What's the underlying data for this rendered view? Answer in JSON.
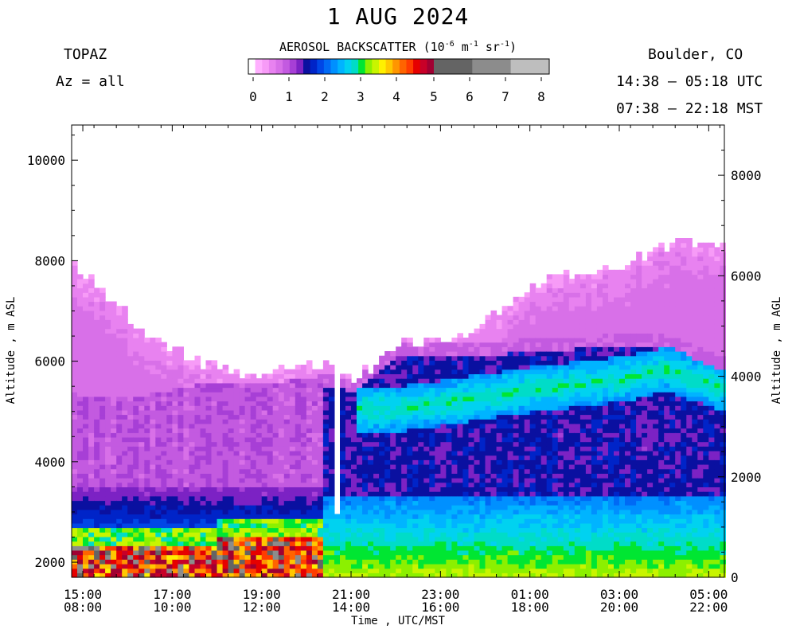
{
  "header": {
    "title": "1 AUG 2024",
    "instrument": "TOPAZ",
    "azimuth": "Az = all",
    "location": "Boulder, CO",
    "utc_range": "14:38 – 05:18 UTC",
    "mst_range": "07:38 – 22:18 MST"
  },
  "colorbar": {
    "title_prefix": "AEROSOL BACKSCATTER (10",
    "title_exp1": "-6",
    "title_mid": " m",
    "title_exp2": "-1",
    "title_mid2": " sr",
    "title_exp3": "-1",
    "title_suffix": ")",
    "tick_labels": [
      "0",
      "1",
      "2",
      "3",
      "4",
      "5",
      "6",
      "7",
      "8"
    ],
    "colors": [
      "#ffffff",
      "#ffb0ff",
      "#f79bf7",
      "#e882f0",
      "#d870e8",
      "#c35ae0",
      "#a73fd6",
      "#7c22c4",
      "#0a10a0",
      "#0024c8",
      "#0046e6",
      "#006af5",
      "#0090ff",
      "#00b4ff",
      "#00d2f0",
      "#00dcc8",
      "#00e632",
      "#8cf000",
      "#c8f500",
      "#fff000",
      "#ffc800",
      "#ff9600",
      "#ff6400",
      "#ff3c00",
      "#e60000",
      "#c80028",
      "#a00032",
      "#646464",
      "#8c8c8c",
      "#bebebe"
    ]
  },
  "chart_data": {
    "type": "heatmap",
    "title": "1 AUG 2024",
    "xlabel": "Time , UTC/MST",
    "ylabel_left": "Altitude , m ASL",
    "ylabel_right": "Altitude , m AGL",
    "x_ticks_utc": [
      "15:00",
      "17:00",
      "19:00",
      "21:00",
      "23:00",
      "01:00",
      "03:00",
      "05:00"
    ],
    "x_ticks_mst": [
      "08:00",
      "10:00",
      "12:00",
      "14:00",
      "16:00",
      "18:00",
      "20:00",
      "22:00"
    ],
    "x_tick_hours_from_1500utc": [
      0,
      2,
      4,
      6,
      8,
      10,
      12,
      14
    ],
    "xlim_hours_from_1500utc": [
      -0.25,
      14.35
    ],
    "ylim_asl_m": [
      1700,
      10700
    ],
    "yticks_asl": [
      2000,
      4000,
      6000,
      8000,
      10000
    ],
    "ylim_agl_m": [
      0,
      9000
    ],
    "yticks_agl": [
      0,
      2000,
      4000,
      6000,
      8000
    ],
    "value_units": "1e-6 m-1 sr-1",
    "value_range": [
      0,
      8
    ],
    "ground_height_m_asl": 1650,
    "profile_times_h": [
      -0.25,
      1.0,
      2.5,
      4.0,
      5.5,
      6.0,
      7.0,
      8.5,
      10.0,
      12.0,
      13.0,
      14.35
    ],
    "top_of_data_m_asl": [
      7850,
      6800,
      5900,
      5700,
      5900,
      5600,
      6300,
      6500,
      7500,
      7900,
      8300,
      8300
    ],
    "aerosol_layer_top_m_asl": [
      5300,
      5200,
      5500,
      5500,
      5700,
      5600,
      6300,
      6300,
      6400,
      6500,
      6500,
      6000
    ],
    "enhanced_layer_m_asl": [
      null,
      null,
      null,
      null,
      null,
      null,
      5000,
      5200,
      5400,
      5600,
      5800,
      5400
    ],
    "gap_time_h": 5.6
  }
}
